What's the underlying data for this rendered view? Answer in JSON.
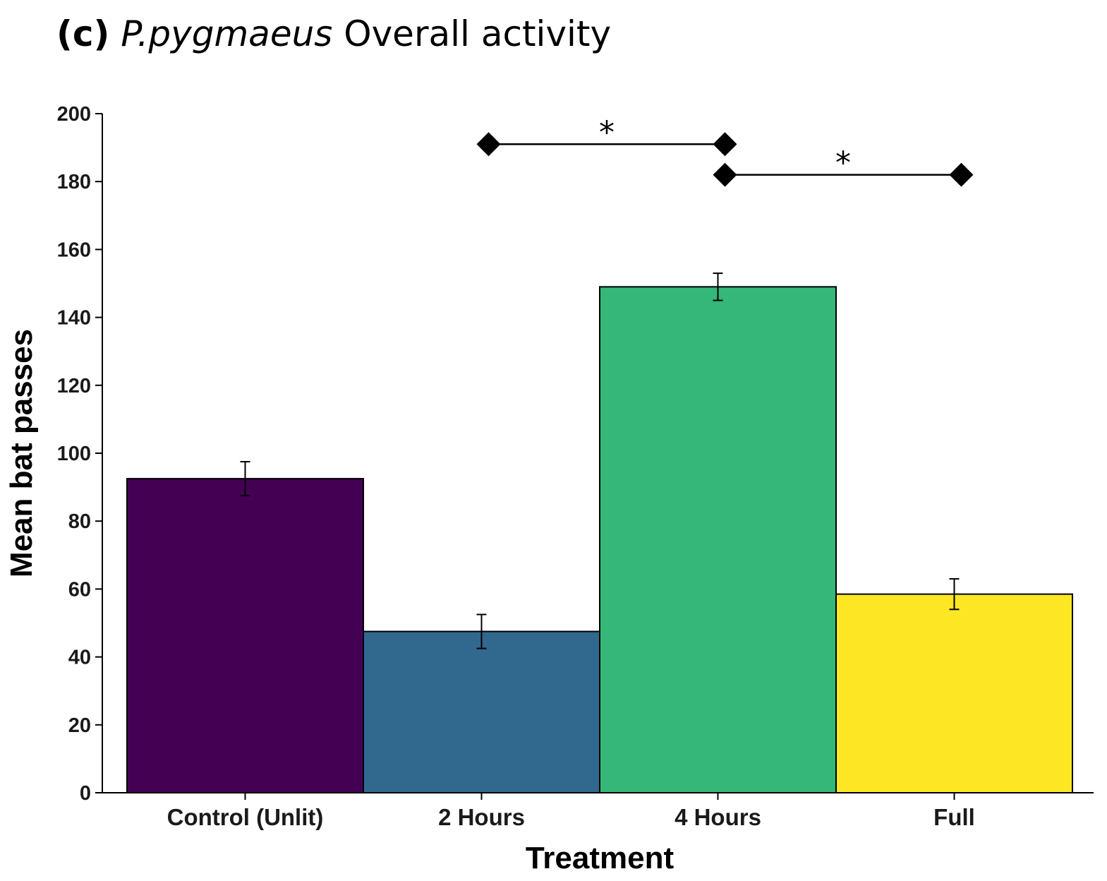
{
  "title": {
    "panel": "(c)",
    "species": "P.pygmaeus",
    "rest": "Overall activity"
  },
  "chart_data": {
    "type": "bar",
    "categories": [
      "Control (Unlit)",
      "2 Hours",
      "4 Hours",
      "Full"
    ],
    "values": [
      92.5,
      47.5,
      149,
      58.5
    ],
    "error": [
      5,
      5,
      4,
      4.5
    ],
    "colors": [
      "#440154",
      "#31688e",
      "#35b779",
      "#fde725"
    ],
    "xlabel": "Treatment",
    "ylabel": "Mean bat passes",
    "ylim": [
      0,
      200
    ],
    "yticks": [
      0,
      20,
      40,
      60,
      80,
      100,
      120,
      140,
      160,
      180,
      200
    ],
    "grid": false,
    "legend": "none",
    "annotations": [
      {
        "from": "2 Hours",
        "to": "4 Hours",
        "y": 191,
        "label": "*"
      },
      {
        "from": "4 Hours",
        "to": "Full",
        "y": 182,
        "label": "*"
      }
    ]
  }
}
